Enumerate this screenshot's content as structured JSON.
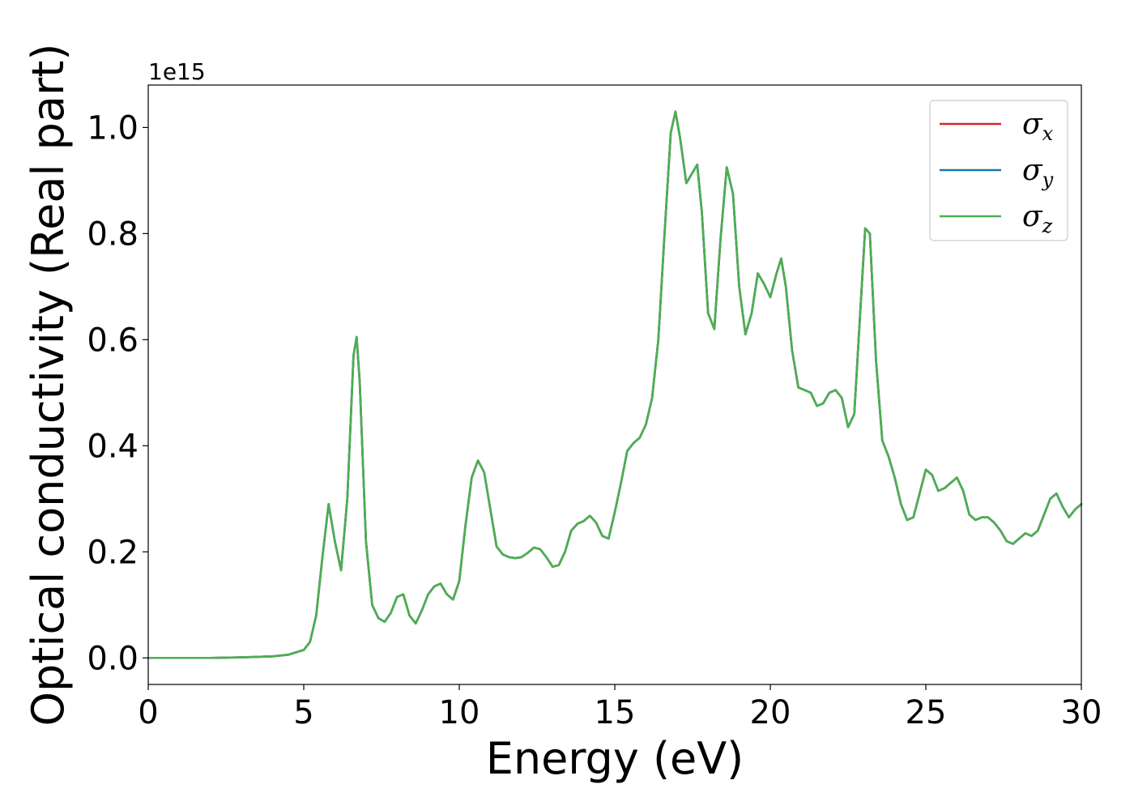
{
  "chart_data": {
    "type": "line",
    "xlabel": "Energy (eV)",
    "ylabel": "Optical conductivity (Real part)",
    "y_offset_label": "1e15",
    "xlim": [
      0,
      30
    ],
    "ylim": [
      -0.05,
      1.08
    ],
    "x_ticks": [
      0,
      5,
      10,
      15,
      20,
      25,
      30
    ],
    "x_tick_labels": [
      "0",
      "5",
      "10",
      "15",
      "20",
      "25",
      "30"
    ],
    "y_ticks": [
      0.0,
      0.2,
      0.4,
      0.6,
      0.8,
      1.0
    ],
    "y_tick_labels": [
      "0.0",
      "0.2",
      "0.4",
      "0.6",
      "0.8",
      "1.0"
    ],
    "grid": false,
    "legend_position": "top-right",
    "x": [
      0,
      1,
      2,
      3,
      4,
      4.5,
      5,
      5.2,
      5.4,
      5.6,
      5.8,
      6.0,
      6.2,
      6.4,
      6.6,
      6.7,
      6.8,
      7.0,
      7.2,
      7.4,
      7.6,
      7.8,
      8.0,
      8.2,
      8.4,
      8.6,
      8.8,
      9.0,
      9.2,
      9.4,
      9.6,
      9.8,
      10.0,
      10.2,
      10.4,
      10.6,
      10.8,
      11.0,
      11.2,
      11.4,
      11.6,
      11.8,
      12.0,
      12.2,
      12.4,
      12.6,
      12.8,
      13.0,
      13.2,
      13.4,
      13.6,
      13.8,
      14.0,
      14.2,
      14.4,
      14.6,
      14.8,
      15.0,
      15.2,
      15.4,
      15.6,
      15.8,
      16.0,
      16.2,
      16.4,
      16.6,
      16.8,
      16.95,
      17.1,
      17.3,
      17.5,
      17.65,
      17.8,
      18.0,
      18.2,
      18.4,
      18.6,
      18.8,
      19.0,
      19.2,
      19.4,
      19.6,
      19.8,
      20.0,
      20.2,
      20.35,
      20.5,
      20.7,
      20.9,
      21.1,
      21.3,
      21.5,
      21.7,
      21.9,
      22.1,
      22.3,
      22.5,
      22.7,
      22.9,
      23.05,
      23.2,
      23.4,
      23.6,
      23.8,
      24.0,
      24.2,
      24.4,
      24.6,
      24.8,
      25.0,
      25.2,
      25.4,
      25.6,
      25.8,
      26.0,
      26.2,
      26.4,
      26.6,
      26.8,
      27.0,
      27.2,
      27.4,
      27.6,
      27.8,
      28.0,
      28.2,
      28.4,
      28.6,
      28.8,
      29.0,
      29.2,
      29.4,
      29.6,
      29.8,
      30.0
    ],
    "series": [
      {
        "name": "σx",
        "color": "#d62728",
        "values": [
          0.0,
          0.0,
          0.0,
          0.001,
          0.003,
          0.006,
          0.015,
          0.03,
          0.08,
          0.19,
          0.29,
          0.22,
          0.165,
          0.3,
          0.57,
          0.605,
          0.52,
          0.22,
          0.1,
          0.075,
          0.068,
          0.085,
          0.115,
          0.12,
          0.08,
          0.065,
          0.09,
          0.12,
          0.135,
          0.14,
          0.12,
          0.11,
          0.145,
          0.25,
          0.34,
          0.372,
          0.35,
          0.28,
          0.21,
          0.195,
          0.19,
          0.188,
          0.19,
          0.198,
          0.208,
          0.205,
          0.19,
          0.172,
          0.175,
          0.2,
          0.24,
          0.253,
          0.258,
          0.268,
          0.255,
          0.23,
          0.225,
          0.275,
          0.33,
          0.39,
          0.405,
          0.415,
          0.44,
          0.49,
          0.6,
          0.8,
          0.99,
          1.03,
          0.98,
          0.895,
          0.915,
          0.93,
          0.84,
          0.65,
          0.62,
          0.79,
          0.925,
          0.875,
          0.7,
          0.61,
          0.65,
          0.725,
          0.705,
          0.68,
          0.725,
          0.753,
          0.7,
          0.58,
          0.51,
          0.505,
          0.5,
          0.475,
          0.48,
          0.5,
          0.505,
          0.49,
          0.435,
          0.46,
          0.66,
          0.81,
          0.8,
          0.56,
          0.41,
          0.38,
          0.34,
          0.29,
          0.26,
          0.265,
          0.31,
          0.355,
          0.345,
          0.315,
          0.32,
          0.33,
          0.34,
          0.315,
          0.27,
          0.26,
          0.265,
          0.265,
          0.255,
          0.24,
          0.22,
          0.215,
          0.225,
          0.235,
          0.23,
          0.24,
          0.27,
          0.3,
          0.31,
          0.285,
          0.265,
          0.28,
          0.29
        ]
      },
      {
        "name": "σy",
        "color": "#1f77b4",
        "values": [
          0.0,
          0.0,
          0.0,
          0.001,
          0.003,
          0.006,
          0.015,
          0.03,
          0.08,
          0.19,
          0.29,
          0.22,
          0.165,
          0.3,
          0.57,
          0.605,
          0.52,
          0.22,
          0.1,
          0.075,
          0.068,
          0.085,
          0.115,
          0.12,
          0.08,
          0.065,
          0.09,
          0.12,
          0.135,
          0.14,
          0.12,
          0.11,
          0.145,
          0.25,
          0.34,
          0.372,
          0.35,
          0.28,
          0.21,
          0.195,
          0.19,
          0.188,
          0.19,
          0.198,
          0.208,
          0.205,
          0.19,
          0.172,
          0.175,
          0.2,
          0.24,
          0.253,
          0.258,
          0.268,
          0.255,
          0.23,
          0.225,
          0.275,
          0.33,
          0.39,
          0.405,
          0.415,
          0.44,
          0.49,
          0.6,
          0.8,
          0.99,
          1.03,
          0.98,
          0.895,
          0.915,
          0.93,
          0.84,
          0.65,
          0.62,
          0.79,
          0.925,
          0.875,
          0.7,
          0.61,
          0.65,
          0.725,
          0.705,
          0.68,
          0.725,
          0.753,
          0.7,
          0.58,
          0.51,
          0.505,
          0.5,
          0.475,
          0.48,
          0.5,
          0.505,
          0.49,
          0.435,
          0.46,
          0.66,
          0.81,
          0.8,
          0.56,
          0.41,
          0.38,
          0.34,
          0.29,
          0.26,
          0.265,
          0.31,
          0.355,
          0.345,
          0.315,
          0.32,
          0.33,
          0.34,
          0.315,
          0.27,
          0.26,
          0.265,
          0.265,
          0.255,
          0.24,
          0.22,
          0.215,
          0.225,
          0.235,
          0.23,
          0.24,
          0.27,
          0.3,
          0.31,
          0.285,
          0.265,
          0.28,
          0.29
        ]
      },
      {
        "name": "σz",
        "color": "#4caf50",
        "values": [
          0.0,
          0.0,
          0.0,
          0.001,
          0.003,
          0.006,
          0.015,
          0.03,
          0.08,
          0.19,
          0.29,
          0.22,
          0.165,
          0.3,
          0.57,
          0.605,
          0.52,
          0.22,
          0.1,
          0.075,
          0.068,
          0.085,
          0.115,
          0.12,
          0.08,
          0.065,
          0.09,
          0.12,
          0.135,
          0.14,
          0.12,
          0.11,
          0.145,
          0.25,
          0.34,
          0.372,
          0.35,
          0.28,
          0.21,
          0.195,
          0.19,
          0.188,
          0.19,
          0.198,
          0.208,
          0.205,
          0.19,
          0.172,
          0.175,
          0.2,
          0.24,
          0.253,
          0.258,
          0.268,
          0.255,
          0.23,
          0.225,
          0.275,
          0.33,
          0.39,
          0.405,
          0.415,
          0.44,
          0.49,
          0.6,
          0.8,
          0.99,
          1.03,
          0.98,
          0.895,
          0.915,
          0.93,
          0.84,
          0.65,
          0.62,
          0.79,
          0.925,
          0.875,
          0.7,
          0.61,
          0.65,
          0.725,
          0.705,
          0.68,
          0.725,
          0.753,
          0.7,
          0.58,
          0.51,
          0.505,
          0.5,
          0.475,
          0.48,
          0.5,
          0.505,
          0.49,
          0.435,
          0.46,
          0.66,
          0.81,
          0.8,
          0.56,
          0.41,
          0.38,
          0.34,
          0.29,
          0.26,
          0.265,
          0.31,
          0.355,
          0.345,
          0.315,
          0.32,
          0.33,
          0.34,
          0.315,
          0.27,
          0.26,
          0.265,
          0.265,
          0.255,
          0.24,
          0.22,
          0.215,
          0.225,
          0.235,
          0.23,
          0.24,
          0.27,
          0.3,
          0.31,
          0.285,
          0.265,
          0.28,
          0.29
        ]
      }
    ],
    "legend": [
      {
        "symbol": "σ",
        "subscript": "x"
      },
      {
        "symbol": "σ",
        "subscript": "y"
      },
      {
        "symbol": "σ",
        "subscript": "z"
      }
    ]
  }
}
